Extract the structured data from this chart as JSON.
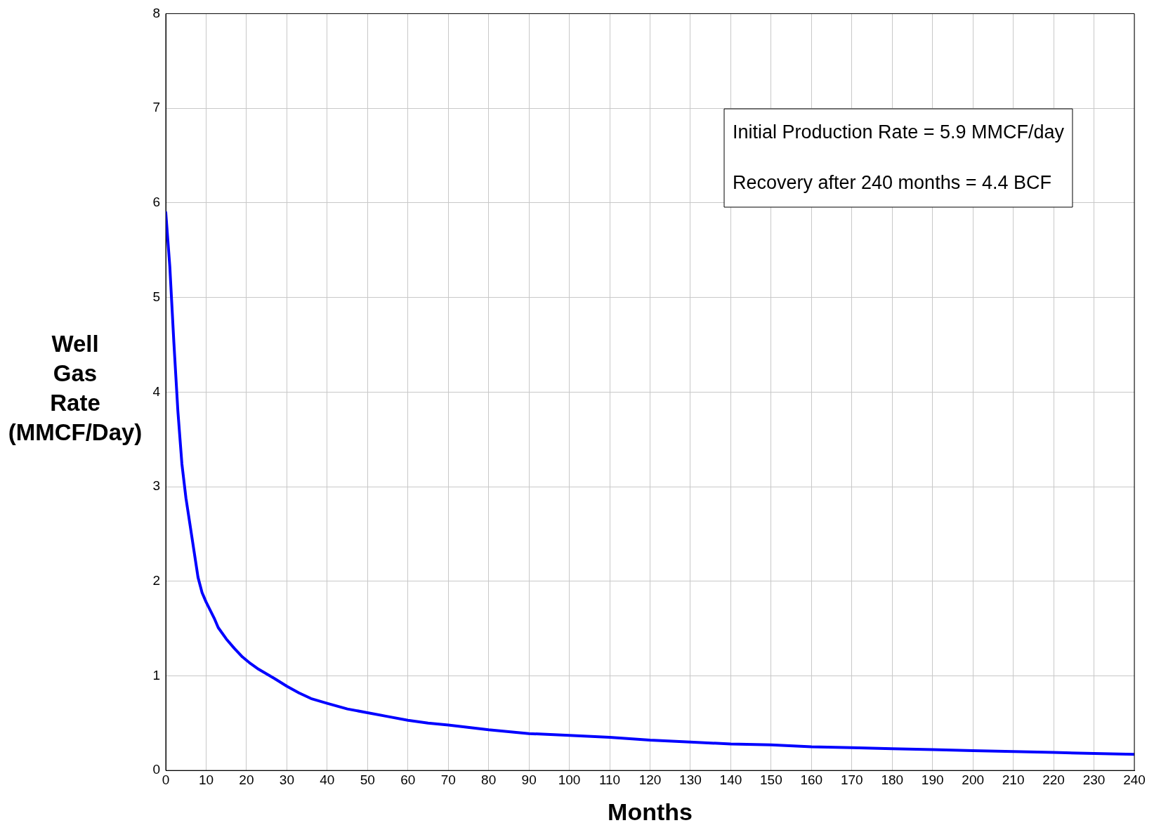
{
  "chart_data": {
    "type": "line",
    "xlabel": "Months",
    "ylabel": "Well Gas Rate (MMCF/Day)",
    "annotations": [
      "Initial Production Rate = 5.9 MMCF/day",
      "Recovery after 240 months = 4.4 BCF"
    ],
    "x": [
      0,
      1,
      2,
      3,
      4,
      5,
      6,
      7,
      8,
      9,
      10,
      12,
      13,
      15,
      17,
      19,
      21,
      23,
      27,
      30,
      33,
      36,
      40,
      45,
      50,
      55,
      60,
      65,
      70,
      80,
      90,
      100,
      110,
      120,
      130,
      140,
      150,
      160,
      170,
      180,
      190,
      200,
      210,
      220,
      230,
      240
    ],
    "series": [
      {
        "color": "#0000ff",
        "values": [
          5.9,
          5.33,
          4.53,
          3.8,
          3.24,
          2.88,
          2.6,
          2.32,
          2.04,
          1.88,
          1.78,
          1.61,
          1.51,
          1.39,
          1.29,
          1.2,
          1.13,
          1.07,
          0.97,
          0.89,
          0.82,
          0.76,
          0.71,
          0.65,
          0.61,
          0.57,
          0.53,
          0.5,
          0.48,
          0.43,
          0.39,
          0.37,
          0.35,
          0.32,
          0.3,
          0.28,
          0.27,
          0.25,
          0.24,
          0.23,
          0.22,
          0.21,
          0.2,
          0.19,
          0.18,
          0.17
        ]
      }
    ],
    "xlim": [
      0,
      240
    ],
    "xticks": [
      0,
      10,
      20,
      30,
      40,
      50,
      60,
      70,
      80,
      90,
      100,
      110,
      120,
      130,
      140,
      150,
      160,
      170,
      180,
      190,
      200,
      210,
      220,
      230,
      240
    ],
    "ylim": [
      0,
      8
    ],
    "yticks": [
      0,
      1,
      2,
      3,
      4,
      5,
      6,
      7,
      8
    ],
    "grid": true,
    "legend": false,
    "marker": "none",
    "line_style": "solid"
  }
}
